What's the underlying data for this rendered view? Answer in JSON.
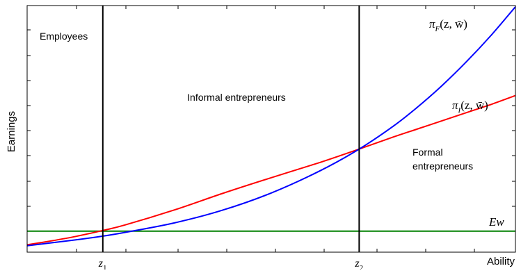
{
  "chart_data": {
    "type": "line",
    "xlabel": "Ability",
    "ylabel": "Earnings",
    "grid": false,
    "colors": {
      "pi_F": "#0000ff",
      "pi_I": "#ff0000",
      "Ew": "#008000",
      "threshold": "#000000",
      "frame": "#000000"
    },
    "x_ticks": [
      {
        "x": 0.155,
        "label": "z",
        "sub": "1"
      },
      {
        "x": 0.68,
        "label": "z",
        "sub": "2"
      }
    ],
    "xlim": [
      0,
      1
    ],
    "ylim": [
      0,
      1
    ],
    "thresholds": [
      0.155,
      0.68
    ],
    "regions": [
      {
        "name": "employees",
        "lines": [
          "Employees"
        ]
      },
      {
        "name": "informal",
        "lines": [
          "Informal entrepreneurs"
        ]
      },
      {
        "name": "formal",
        "lines": [
          "Formal",
          "entrepreneurs"
        ]
      }
    ],
    "series": [
      {
        "key": "pi_F",
        "math": "π",
        "sub": "F",
        "args": "(z, w̄)",
        "x": [
          0.0,
          0.05,
          0.1,
          0.155,
          0.2,
          0.3,
          0.4,
          0.5,
          0.6,
          0.68,
          0.75,
          0.8,
          0.85,
          0.9,
          0.95,
          1.0
        ],
        "y": [
          0.026,
          0.038,
          0.05,
          0.065,
          0.08,
          0.118,
          0.17,
          0.24,
          0.33,
          0.418,
          0.511,
          0.589,
          0.676,
          0.773,
          0.879,
          0.995
        ]
      },
      {
        "key": "pi_I",
        "math": "π",
        "sub": "I",
        "args": "(z, w̄)",
        "x": [
          0.0,
          0.05,
          0.1,
          0.155,
          0.2,
          0.3,
          0.4,
          0.5,
          0.6,
          0.68,
          0.75,
          0.8,
          0.85,
          0.9,
          0.95,
          1.0
        ],
        "y": [
          0.03,
          0.046,
          0.064,
          0.088,
          0.11,
          0.17,
          0.238,
          0.302,
          0.364,
          0.418,
          0.467,
          0.5,
          0.533,
          0.566,
          0.599,
          0.635
        ]
      },
      {
        "key": "Ew",
        "math": "Ew",
        "sub": "",
        "args": "",
        "x": [
          0.0,
          1.0
        ],
        "y": [
          0.085,
          0.085
        ]
      }
    ]
  }
}
